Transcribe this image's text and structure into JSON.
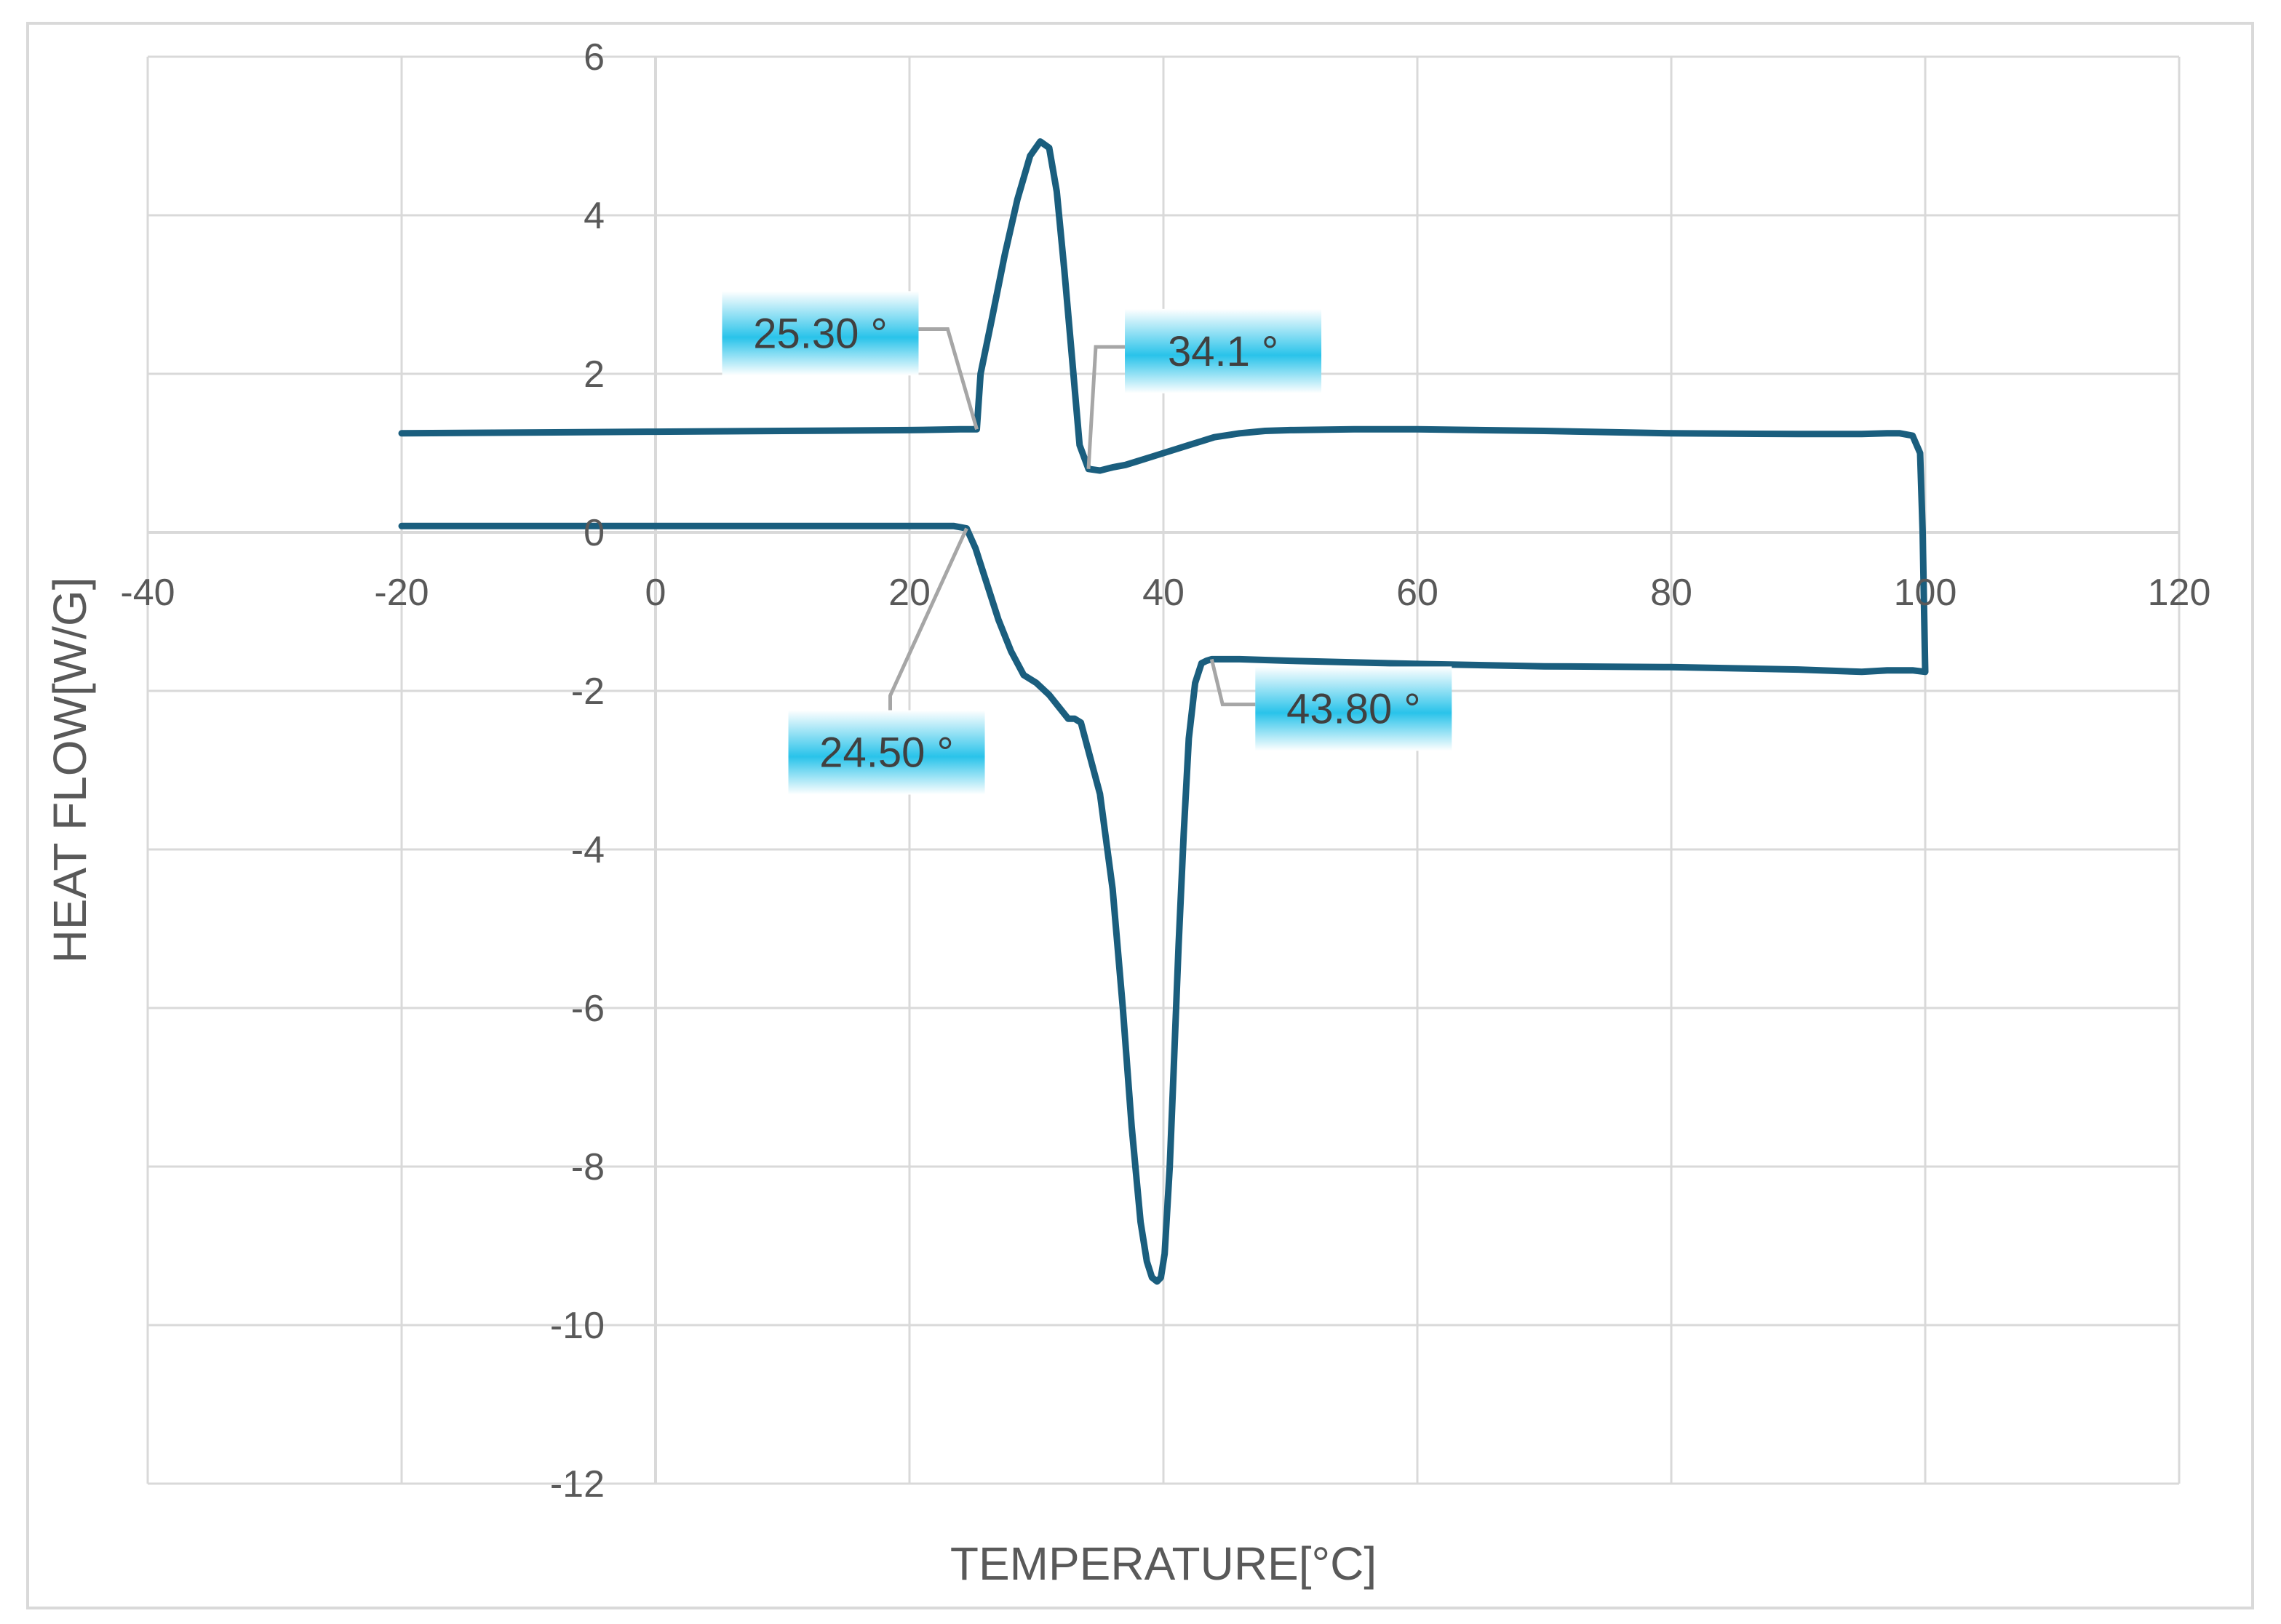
{
  "chart_data": {
    "type": "line",
    "title": "",
    "xlabel": "TEMPERATURE[°C]",
    "ylabel": "HEAT FLOW[W/G]",
    "xlim": [
      -40,
      120
    ],
    "ylim": [
      -12,
      6
    ],
    "x_ticks": [
      -40,
      -20,
      0,
      20,
      40,
      60,
      80,
      100,
      120
    ],
    "y_ticks": [
      -12,
      -10,
      -8,
      -6,
      -4,
      -2,
      0,
      2,
      4,
      6
    ],
    "grid": true,
    "colors": {
      "line": "#1a5e7e",
      "grid": "#d9d9d9",
      "callout_top": "#ffffff",
      "callout_mid": "#29c3ea",
      "leader": "#a6a6a6"
    },
    "series": [
      {
        "x": [
          -20,
          0,
          10,
          20,
          24,
          25.3,
          25.6,
          26.5,
          27.5,
          28.5,
          29.5,
          30.3,
          31,
          31.6,
          32.2,
          32.8,
          33.4,
          34.1,
          35,
          36,
          37,
          38,
          39,
          40,
          42,
          44,
          46,
          48,
          50,
          55,
          60,
          70,
          80,
          90,
          95,
          97,
          98,
          99,
          99.6,
          99.8,
          100
        ],
        "y": [
          1.25,
          1.27,
          1.28,
          1.29,
          1.3,
          1.3,
          2.0,
          2.7,
          3.5,
          4.2,
          4.75,
          4.93,
          4.85,
          4.3,
          3.3,
          2.2,
          1.1,
          0.8,
          0.78,
          0.82,
          0.85,
          0.9,
          0.95,
          1.0,
          1.1,
          1.2,
          1.25,
          1.28,
          1.29,
          1.3,
          1.3,
          1.28,
          1.25,
          1.24,
          1.24,
          1.25,
          1.25,
          1.22,
          1.0,
          0.0,
          -1.75
        ]
      },
      {
        "x": [
          -20,
          0,
          10,
          20,
          23.5,
          24.5,
          25.2,
          26,
          27,
          28,
          29,
          30,
          31,
          32,
          32.5,
          33,
          33.5,
          34,
          35,
          36,
          36.8,
          37.5,
          38.2,
          38.7,
          39.1,
          39.5,
          39.8,
          40.1,
          40.5,
          40.8,
          41.2,
          41.6,
          42,
          42.5,
          43,
          43.4,
          43.8,
          44.5,
          46,
          50,
          60,
          70,
          80,
          90,
          95,
          97,
          98,
          99,
          100
        ],
        "y": [
          0.08,
          0.08,
          0.08,
          0.08,
          0.08,
          0.05,
          -0.2,
          -0.6,
          -1.1,
          -1.5,
          -1.8,
          -1.9,
          -2.05,
          -2.25,
          -2.35,
          -2.35,
          -2.4,
          -2.7,
          -3.3,
          -4.5,
          -6.0,
          -7.5,
          -8.7,
          -9.2,
          -9.4,
          -9.45,
          -9.4,
          -9.1,
          -8.0,
          -6.8,
          -5.2,
          -3.8,
          -2.6,
          -1.9,
          -1.65,
          -1.62,
          -1.6,
          -1.6,
          -1.6,
          -1.62,
          -1.66,
          -1.69,
          -1.7,
          -1.73,
          -1.76,
          -1.74,
          -1.74,
          -1.74,
          -1.76
        ]
      }
    ],
    "annotations": [
      {
        "text": "25.30 °",
        "x": 25.3,
        "y": 1.3,
        "label_anchor": "upper-left"
      },
      {
        "text": "34.1 °",
        "x": 34.1,
        "y": 0.8,
        "label_anchor": "upper-right"
      },
      {
        "text": "24.50 °",
        "x": 24.5,
        "y": 0.05,
        "label_anchor": "lower-left"
      },
      {
        "text": "43.80 °",
        "x": 43.8,
        "y": -1.6,
        "label_anchor": "lower-right"
      }
    ]
  }
}
